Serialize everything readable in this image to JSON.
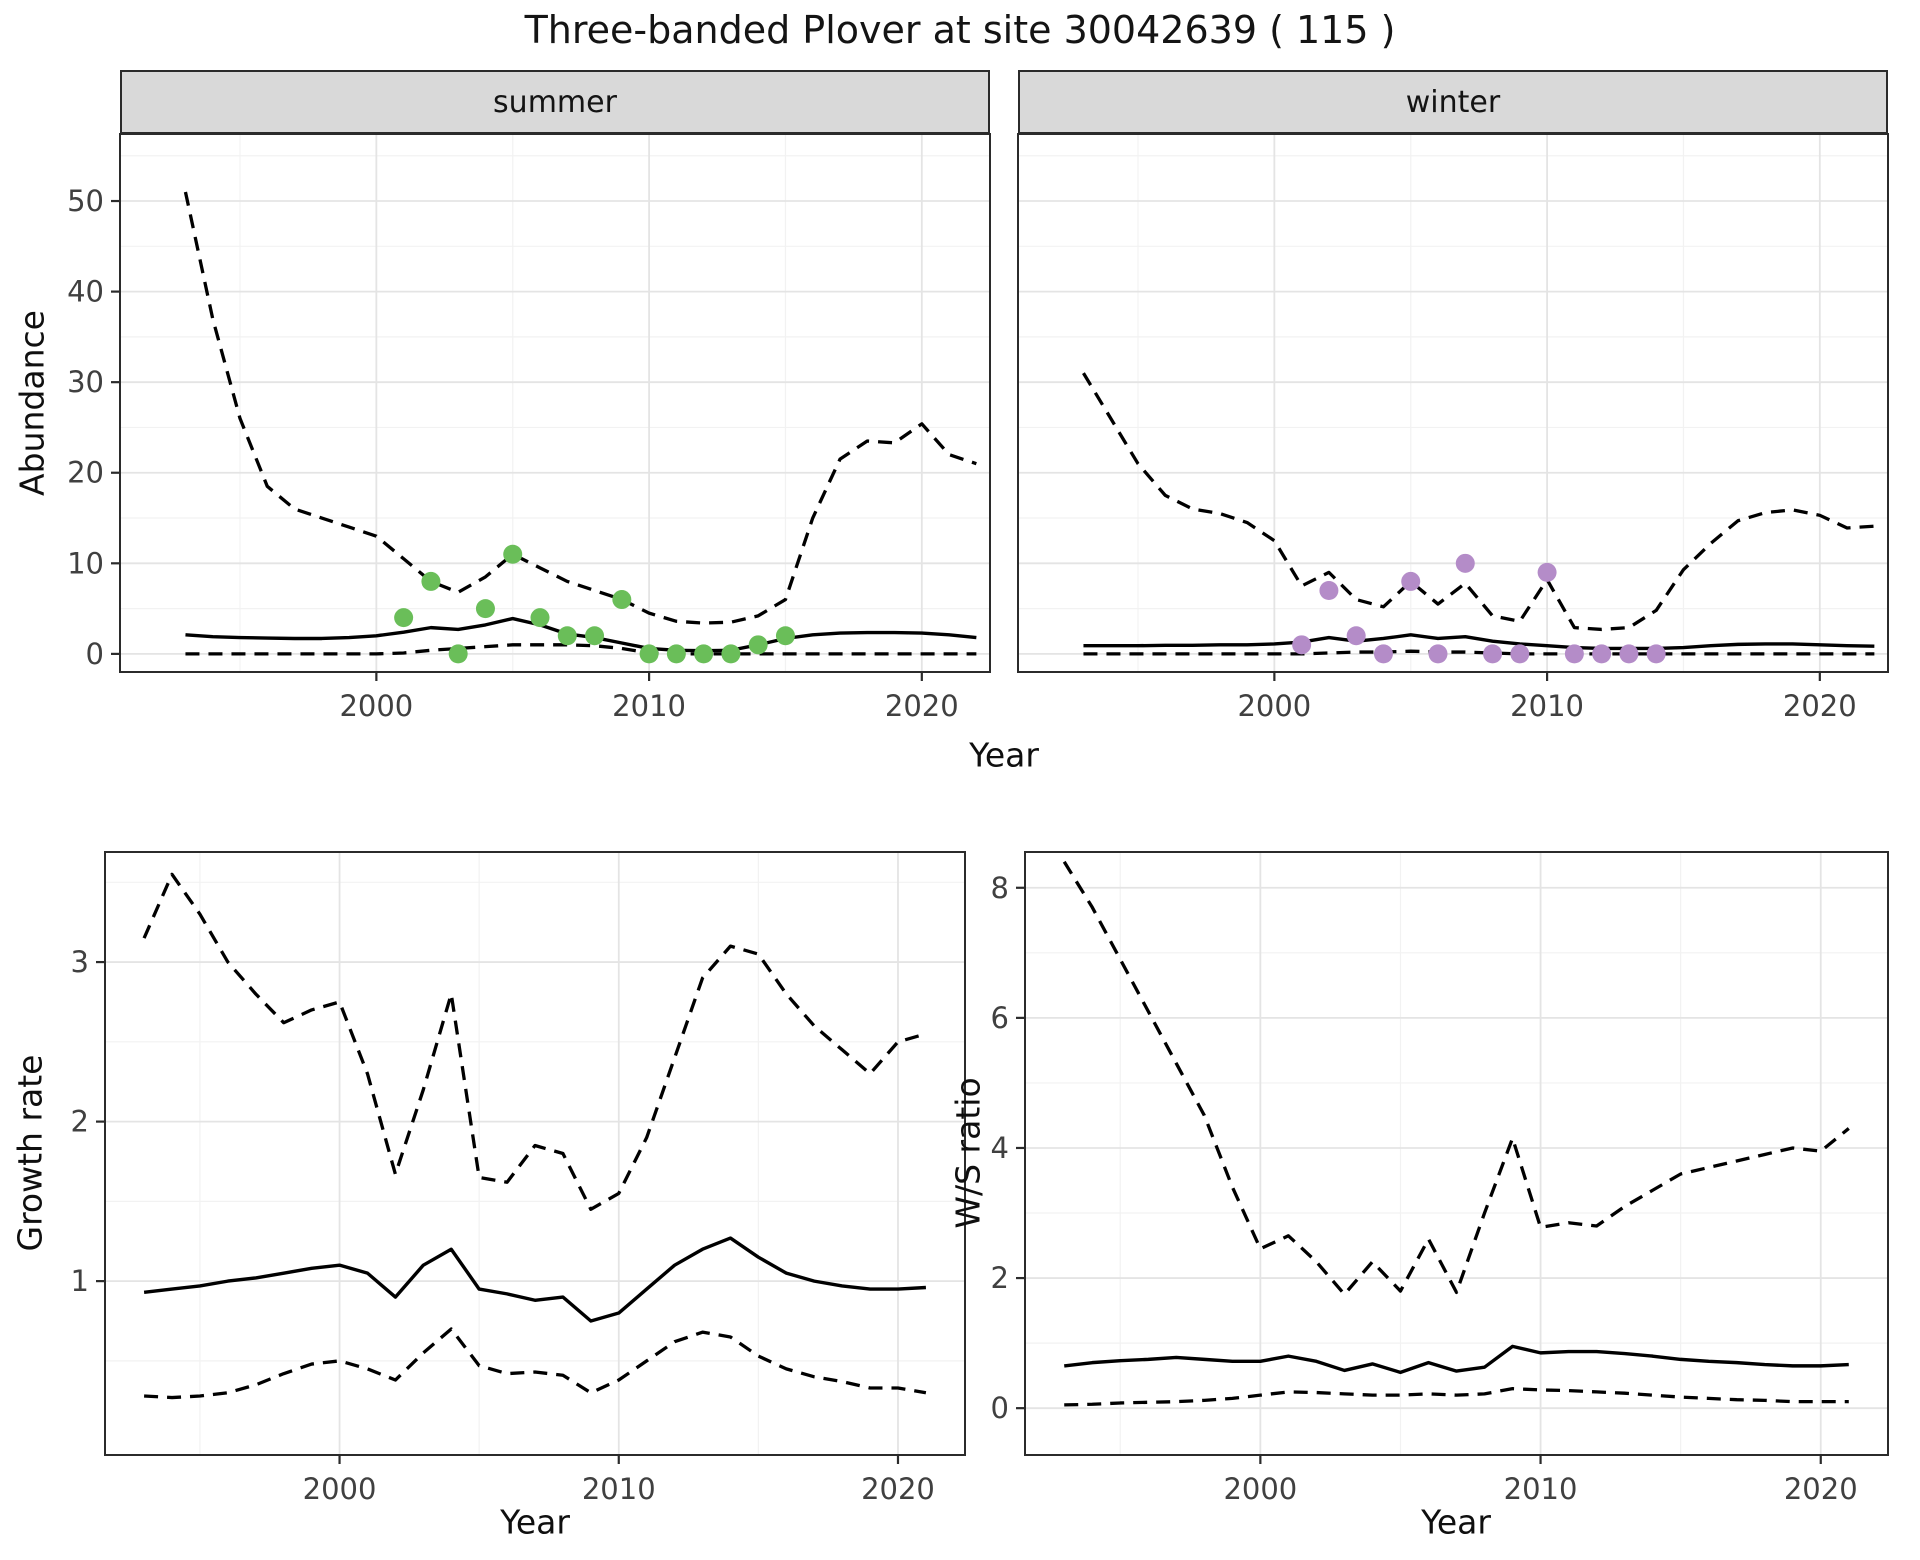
{
  "title": "Three-banded Plover at site 30042639 ( 115 )",
  "labels": {
    "year": "Year",
    "abundance": "Abundance",
    "growth_rate": "Growth rate",
    "ws_ratio": "W/S ratio"
  },
  "facets": {
    "summer": "summer",
    "winter": "winter"
  },
  "colors": {
    "summer_point": "#6abe59",
    "winter_point": "#b48cc8",
    "line": "#000000",
    "strip_bg": "#d9d9d9",
    "grid_major": "#e4e4e4",
    "grid_minor": "#f2f2f2",
    "panel_border": "#2b2b2b",
    "tick_label": "#404040"
  },
  "chart_data": [
    {
      "id": "sum",
      "name": "abundance-summer",
      "type": "line",
      "facet": "summer",
      "title": "Abundance, summer facet",
      "xlabel": "Year",
      "ylabel": "Abundance",
      "xlim": [
        1990.6,
        2022.5
      ],
      "ylim": [
        -2,
        57.4
      ],
      "xticks": [
        2000,
        2010,
        2020
      ],
      "xminor": [
        1995,
        2005,
        2015
      ],
      "yticks": [
        0,
        10,
        20,
        30,
        40,
        50
      ],
      "yminor": [
        5,
        15,
        25,
        35,
        45,
        55
      ],
      "grid": true,
      "legend": "none",
      "years": [
        1993,
        1994,
        1995,
        1996,
        1997,
        1998,
        1999,
        2000,
        2001,
        2002,
        2003,
        2004,
        2005,
        2006,
        2007,
        2008,
        2009,
        2010,
        2011,
        2012,
        2013,
        2014,
        2015,
        2016,
        2017,
        2018,
        2019,
        2020,
        2021,
        2022
      ],
      "series": [
        {
          "name": "upper_ci",
          "style": "dashed",
          "values": [
            51,
            37,
            26,
            18.5,
            16,
            15,
            14,
            13,
            10.5,
            8,
            6.8,
            8.5,
            11,
            9.5,
            8,
            7,
            6,
            4.5,
            3.6,
            3.4,
            3.5,
            4.2,
            6,
            15,
            21.5,
            23.5,
            23.3,
            25.4,
            22,
            21
          ]
        },
        {
          "name": "median",
          "style": "solid",
          "values": [
            2.1,
            1.9,
            1.8,
            1.75,
            1.7,
            1.7,
            1.8,
            2.0,
            2.4,
            2.9,
            2.7,
            3.2,
            3.9,
            3.2,
            2.2,
            1.8,
            1.2,
            0.6,
            0.4,
            0.35,
            0.4,
            1.0,
            1.7,
            2.1,
            2.3,
            2.35,
            2.35,
            2.3,
            2.1,
            1.8
          ]
        },
        {
          "name": "lower_ci",
          "style": "dashed",
          "values": [
            0,
            0,
            0,
            0,
            0,
            0,
            0,
            0,
            0.1,
            0.4,
            0.6,
            0.8,
            1.0,
            1.0,
            1.0,
            0.9,
            0.6,
            0.1,
            0,
            0,
            0,
            0,
            0,
            0,
            0,
            0,
            0,
            0,
            0,
            0
          ]
        }
      ],
      "points": {
        "name": "observed-counts-summer",
        "color": "#6abe59",
        "years": [
          2001,
          2002,
          2003,
          2004,
          2005,
          2006,
          2007,
          2008,
          2009,
          2010,
          2011,
          2012,
          2013,
          2014,
          2015
        ],
        "values": [
          4,
          8,
          0,
          5,
          11,
          4,
          2,
          2,
          6,
          0,
          0,
          0,
          0,
          1,
          2
        ]
      }
    },
    {
      "id": "win",
      "name": "abundance-winter",
      "type": "line",
      "facet": "winter",
      "title": "Abundance, winter facet",
      "xlabel": "Year",
      "ylabel": "Abundance",
      "xlim": [
        1990.6,
        2022.5
      ],
      "ylim": [
        -2,
        57.4
      ],
      "xticks": [
        2000,
        2010,
        2020
      ],
      "xminor": [
        1995,
        2005,
        2015
      ],
      "yticks": [
        0,
        10,
        20,
        30,
        40,
        50
      ],
      "yminor": [
        5,
        15,
        25,
        35,
        45,
        55
      ],
      "grid": true,
      "legend": "none",
      "years": [
        1993,
        1994,
        1995,
        1996,
        1997,
        1998,
        1999,
        2000,
        2001,
        2002,
        2003,
        2004,
        2005,
        2006,
        2007,
        2008,
        2009,
        2010,
        2011,
        2012,
        2013,
        2014,
        2015,
        2016,
        2017,
        2018,
        2019,
        2020,
        2021,
        2022
      ],
      "series": [
        {
          "name": "upper_ci",
          "style": "dashed",
          "values": [
            31,
            26,
            21,
            17.5,
            16,
            15.5,
            14.5,
            12.5,
            7.5,
            9,
            6,
            5.2,
            8,
            5.5,
            7.8,
            4.2,
            3.6,
            8.2,
            2.9,
            2.7,
            2.9,
            4.8,
            9.3,
            12.2,
            14.7,
            15.6,
            15.9,
            15.3,
            13.9,
            14.1
          ]
        },
        {
          "name": "median",
          "style": "solid",
          "values": [
            0.9,
            0.9,
            0.9,
            0.95,
            0.95,
            1.0,
            1.0,
            1.1,
            1.3,
            1.8,
            1.4,
            1.7,
            2.1,
            1.7,
            1.9,
            1.4,
            1.1,
            0.9,
            0.7,
            0.6,
            0.6,
            0.6,
            0.7,
            0.9,
            1.05,
            1.1,
            1.1,
            1.0,
            0.9,
            0.85
          ]
        },
        {
          "name": "lower_ci",
          "style": "dashed",
          "values": [
            0,
            0,
            0,
            0,
            0,
            0,
            0,
            0,
            0,
            0.1,
            0.2,
            0.2,
            0.3,
            0.2,
            0.2,
            0.1,
            0,
            0,
            0,
            0,
            0,
            0,
            0,
            0,
            0,
            0,
            0,
            0,
            0,
            0
          ]
        }
      ],
      "points": {
        "name": "observed-counts-winter",
        "color": "#b48cc8",
        "years": [
          2001,
          2002,
          2003,
          2004,
          2005,
          2006,
          2007,
          2008,
          2009,
          2010,
          2011,
          2012,
          2013,
          2014
        ],
        "values": [
          1,
          7,
          2,
          0,
          8,
          0,
          10,
          0,
          0,
          9,
          0,
          0,
          0,
          0
        ]
      }
    },
    {
      "id": "gr",
      "name": "growth-rate",
      "type": "line",
      "facet": null,
      "title": "Growth rate",
      "xlabel": "Year",
      "ylabel": "Growth rate",
      "xlim": [
        1991.6,
        2022.4
      ],
      "ylim": [
        -0.09,
        3.69
      ],
      "xticks": [
        2000,
        2010,
        2020
      ],
      "xminor": [
        1995,
        2005,
        2015
      ],
      "yticks": [
        1,
        2,
        3
      ],
      "yminor": [
        0.5,
        1.5,
        2.5,
        3.5
      ],
      "grid": true,
      "legend": "none",
      "years": [
        1993,
        1994,
        1995,
        1996,
        1997,
        1998,
        1999,
        2000,
        2001,
        2002,
        2003,
        2004,
        2005,
        2006,
        2007,
        2008,
        2009,
        2010,
        2011,
        2012,
        2013,
        2014,
        2015,
        2016,
        2017,
        2018,
        2019,
        2020,
        2021
      ],
      "series": [
        {
          "name": "upper_ci",
          "style": "dashed",
          "values": [
            3.15,
            3.55,
            3.3,
            3.0,
            2.8,
            2.62,
            2.7,
            2.75,
            2.3,
            1.67,
            2.2,
            2.8,
            1.65,
            1.62,
            1.85,
            1.8,
            1.45,
            1.55,
            1.9,
            2.4,
            2.9,
            3.1,
            3.05,
            2.8,
            2.6,
            2.45,
            2.3,
            2.5,
            2.55
          ]
        },
        {
          "name": "median",
          "style": "solid",
          "values": [
            0.93,
            0.95,
            0.97,
            1.0,
            1.02,
            1.05,
            1.08,
            1.1,
            1.05,
            0.9,
            1.1,
            1.2,
            0.95,
            0.92,
            0.88,
            0.9,
            0.75,
            0.8,
            0.95,
            1.1,
            1.2,
            1.27,
            1.15,
            1.05,
            1.0,
            0.97,
            0.95,
            0.95,
            0.96
          ]
        },
        {
          "name": "lower_ci",
          "style": "dashed",
          "values": [
            0.28,
            0.27,
            0.28,
            0.3,
            0.35,
            0.42,
            0.48,
            0.5,
            0.45,
            0.38,
            0.55,
            0.7,
            0.47,
            0.42,
            0.43,
            0.41,
            0.3,
            0.38,
            0.5,
            0.62,
            0.68,
            0.65,
            0.53,
            0.45,
            0.4,
            0.37,
            0.33,
            0.33,
            0.3
          ]
        }
      ],
      "points": null
    },
    {
      "id": "ws",
      "name": "ws-ratio",
      "type": "line",
      "facet": null,
      "title": "W/S ratio",
      "xlabel": "Year",
      "ylabel": "W/S ratio",
      "xlim": [
        1991.6,
        2022.4
      ],
      "ylim": [
        -0.72,
        8.55
      ],
      "xticks": [
        2000,
        2010,
        2020
      ],
      "xminor": [
        1995,
        2005,
        2015
      ],
      "yticks": [
        0,
        2,
        4,
        6,
        8
      ],
      "yminor": [
        1,
        3,
        5,
        7
      ],
      "grid": true,
      "legend": "none",
      "years": [
        1993,
        1994,
        1995,
        1996,
        1997,
        1998,
        1999,
        2000,
        2001,
        2002,
        2003,
        2004,
        2005,
        2006,
        2007,
        2008,
        2009,
        2010,
        2011,
        2012,
        2013,
        2014,
        2015,
        2016,
        2017,
        2018,
        2019,
        2020,
        2021
      ],
      "series": [
        {
          "name": "upper_ci",
          "style": "dashed",
          "values": [
            8.4,
            7.7,
            6.9,
            6.1,
            5.3,
            4.5,
            3.4,
            2.45,
            2.65,
            2.25,
            1.75,
            2.25,
            1.8,
            2.6,
            1.78,
            3.0,
            4.15,
            2.78,
            2.85,
            2.8,
            3.1,
            3.35,
            3.6,
            3.7,
            3.8,
            3.9,
            4.0,
            3.95,
            4.3
          ]
        },
        {
          "name": "median",
          "style": "solid",
          "values": [
            0.65,
            0.7,
            0.73,
            0.75,
            0.78,
            0.75,
            0.72,
            0.72,
            0.8,
            0.72,
            0.58,
            0.68,
            0.55,
            0.7,
            0.57,
            0.63,
            0.95,
            0.85,
            0.87,
            0.87,
            0.84,
            0.8,
            0.75,
            0.72,
            0.7,
            0.67,
            0.65,
            0.65,
            0.67
          ]
        },
        {
          "name": "lower_ci",
          "style": "dashed",
          "values": [
            0.05,
            0.06,
            0.08,
            0.09,
            0.1,
            0.12,
            0.15,
            0.2,
            0.25,
            0.24,
            0.22,
            0.2,
            0.2,
            0.22,
            0.2,
            0.22,
            0.3,
            0.28,
            0.27,
            0.25,
            0.23,
            0.2,
            0.17,
            0.15,
            0.13,
            0.12,
            0.1,
            0.1,
            0.1
          ]
        }
      ],
      "points": null
    }
  ]
}
